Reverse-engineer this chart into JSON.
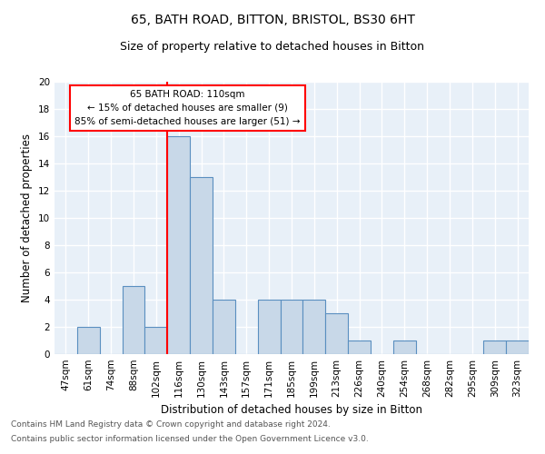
{
  "title1": "65, BATH ROAD, BITTON, BRISTOL, BS30 6HT",
  "title2": "Size of property relative to detached houses in Bitton",
  "xlabel": "Distribution of detached houses by size in Bitton",
  "ylabel": "Number of detached properties",
  "footnote1": "Contains HM Land Registry data © Crown copyright and database right 2024.",
  "footnote2": "Contains public sector information licensed under the Open Government Licence v3.0.",
  "categories": [
    "47sqm",
    "61sqm",
    "74sqm",
    "88sqm",
    "102sqm",
    "116sqm",
    "130sqm",
    "143sqm",
    "157sqm",
    "171sqm",
    "185sqm",
    "199sqm",
    "213sqm",
    "226sqm",
    "240sqm",
    "254sqm",
    "268sqm",
    "282sqm",
    "295sqm",
    "309sqm",
    "323sqm"
  ],
  "values": [
    0,
    2,
    0,
    5,
    2,
    16,
    13,
    4,
    0,
    4,
    4,
    4,
    3,
    1,
    0,
    1,
    0,
    0,
    0,
    1,
    1
  ],
  "bar_color": "#c8d8e8",
  "bar_edge_color": "#5a8fc0",
  "vline_color": "red",
  "annotation_text": "65 BATH ROAD: 110sqm\n← 15% of detached houses are smaller (9)\n85% of semi-detached houses are larger (51) →",
  "annotation_box_color": "white",
  "annotation_box_edge": "red",
  "ylim": [
    0,
    20
  ],
  "yticks": [
    0,
    2,
    4,
    6,
    8,
    10,
    12,
    14,
    16,
    18,
    20
  ],
  "background_color": "#e8f0f8",
  "grid_color": "white",
  "title1_fontsize": 10,
  "title2_fontsize": 9,
  "ylabel_fontsize": 8.5,
  "xlabel_fontsize": 8.5,
  "tick_fontsize": 7.5,
  "footnote_fontsize": 6.5,
  "footnote_color": "#555555"
}
